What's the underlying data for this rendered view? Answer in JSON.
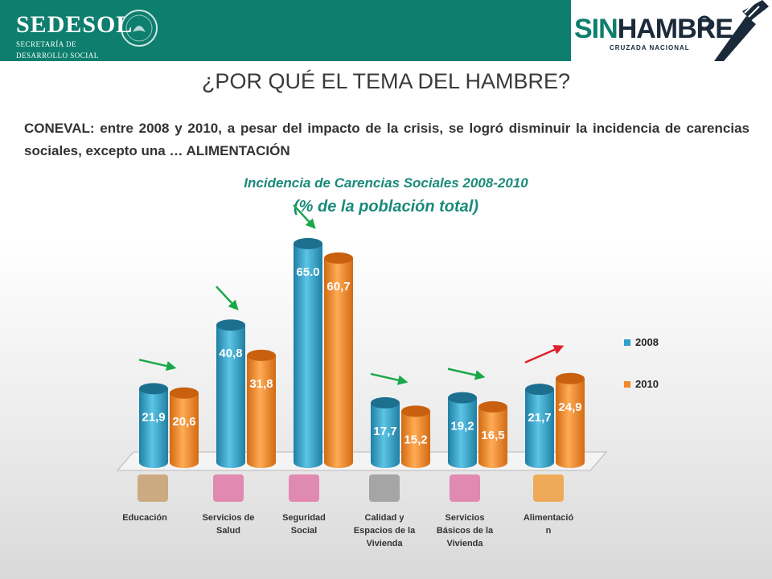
{
  "header": {
    "logo_main": "SEDESOL",
    "logo_sub_1": "SECRETARÍA DE",
    "logo_sub_2": "DESARROLLO SOCIAL",
    "brand_sin": "SIN",
    "brand_hambre": "HAMBRE",
    "brand_sub": "CRUZADA NACIONAL"
  },
  "title": "¿POR QUÉ EL TEMA DEL HAMBRE?",
  "intro": "CONEVAL: entre 2008 y 2010, a pesar del impacto de la crisis, se logró disminuir la incidencia de carencias sociales, excepto una … ALIMENTACIÓN",
  "chart_data": {
    "type": "bar",
    "title": "Incidencia de Carencias Sociales 2008-2010",
    "subtitle": "(% de la población total)",
    "categories": [
      "Educación",
      "Servicios de Salud",
      "Seguridad Social",
      "Calidad y Espacios de la Vivienda",
      "Servicios Básicos de la Vivienda",
      "Alimentación"
    ],
    "category_labels_printed": [
      "Educación",
      "Servicios de\nSalud",
      "Seguridad\nSocial",
      "Calidad y\nEspacios de la\nVivienda",
      "Servicios\nBásicos de la\nVivienda",
      "Alimentació\nn"
    ],
    "series": [
      {
        "name": "2008",
        "values": [
          21.9,
          40.8,
          65.0,
          17.7,
          19.2,
          21.7
        ],
        "labels": [
          "21,9",
          "40,8",
          "65.0",
          "17,7",
          "19,2",
          "21,7"
        ],
        "color": "#2e9fc8"
      },
      {
        "name": "2010",
        "values": [
          20.6,
          31.8,
          60.7,
          15.2,
          16.5,
          24.9
        ],
        "labels": [
          "20,6",
          "31,8",
          "60,7",
          "15,2",
          "16,5",
          "24,9"
        ],
        "color": "#f08a2c"
      }
    ],
    "ylim": [
      0,
      70
    ],
    "grid": false,
    "legend": "right",
    "trend_arrows": [
      "down",
      "down",
      "down",
      "down",
      "down",
      "up"
    ],
    "arrow_colors": {
      "down": "#1aa84a",
      "up": "#e0202a"
    },
    "icon_colors": [
      "#c8a070",
      "#e07aa8",
      "#e07aa8",
      "#9a9a9a",
      "#e07aa8",
      "#f0a040"
    ]
  }
}
